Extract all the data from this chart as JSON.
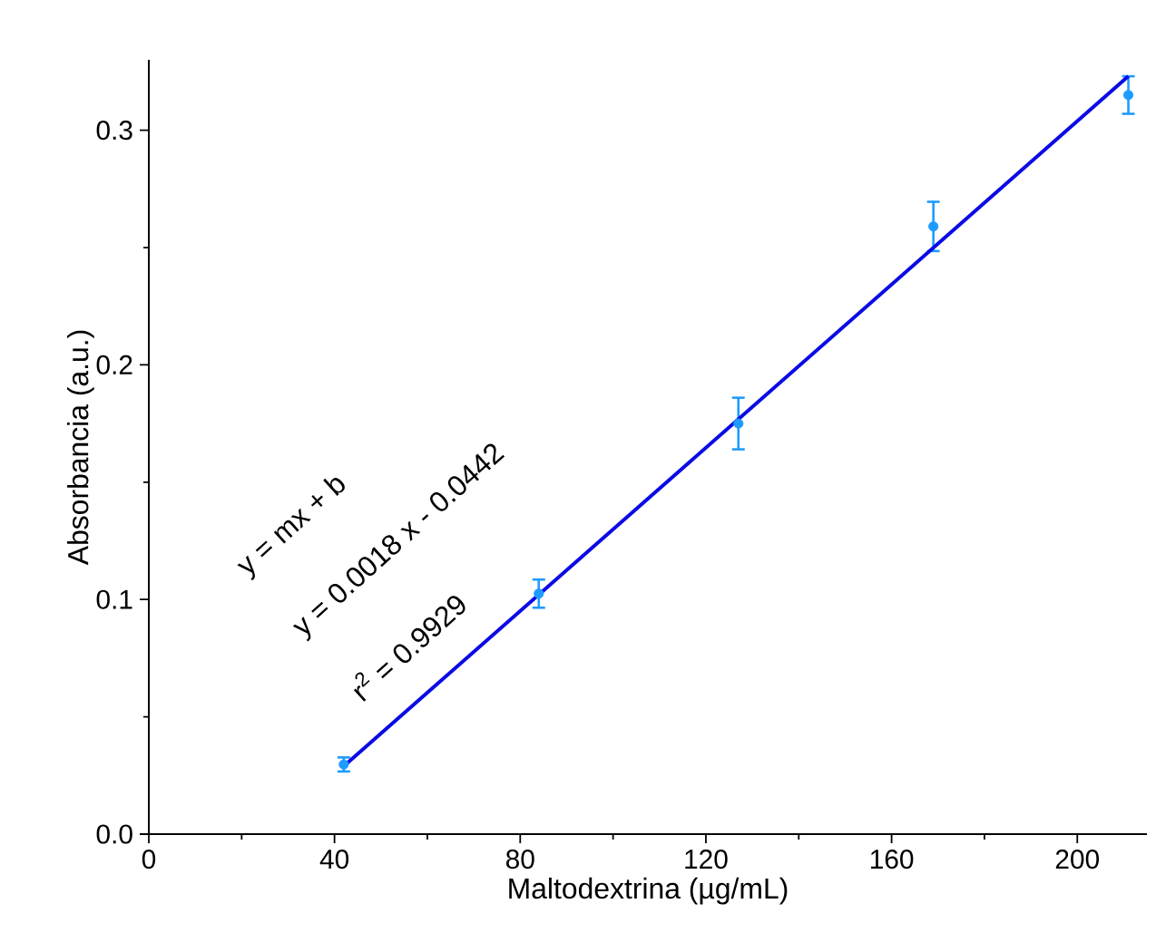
{
  "chart_data": {
    "type": "scatter",
    "xlabel": "Maltodextrina (µg/mL)",
    "ylabel": "Absorbancia (a.u.)",
    "x": [
      42,
      84,
      127,
      169,
      211
    ],
    "series": [
      {
        "type": "scatter",
        "color": "#1e9bff",
        "values": [
          0.0297,
          0.1025,
          0.175,
          0.259,
          0.315
        ],
        "errors": [
          0.003,
          0.006,
          0.011,
          0.0105,
          0.008
        ]
      },
      {
        "type": "line",
        "color": "#0a0ae6",
        "x": [
          42,
          211
        ],
        "values": [
          0.029,
          0.323
        ],
        "line_style": "solid"
      }
    ],
    "annotations": [
      "y = mx + b",
      "y = 0.0018 x - 0.0442",
      "r$^{2}$ = 0.9929"
    ],
    "xlim": [
      0,
      215
    ],
    "ylim": [
      0,
      0.33
    ],
    "xticks": [
      0,
      40,
      80,
      120,
      160,
      200
    ],
    "yticks": [
      {
        "value": 0,
        "label": "0.0"
      },
      0.1,
      0.2,
      0.3
    ],
    "grid": false
  }
}
